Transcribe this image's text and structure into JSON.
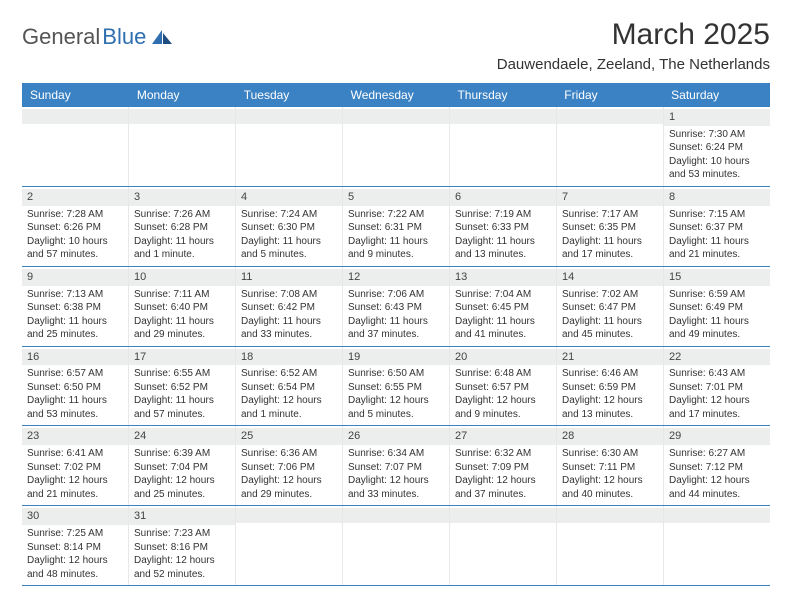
{
  "brand": {
    "part1": "General",
    "part2": "Blue"
  },
  "title": "March 2025",
  "location": "Dauwendaele, Zeeland, The Netherlands",
  "weekdays": [
    "Sunday",
    "Monday",
    "Tuesday",
    "Wednesday",
    "Thursday",
    "Friday",
    "Saturday"
  ],
  "colors": {
    "header_bg": "#3b82c4",
    "daynum_bg": "#eceded",
    "rule": "#3b82c4"
  },
  "weeks": [
    [
      {
        "n": "",
        "sr": "",
        "ss": "",
        "dl": ""
      },
      {
        "n": "",
        "sr": "",
        "ss": "",
        "dl": ""
      },
      {
        "n": "",
        "sr": "",
        "ss": "",
        "dl": ""
      },
      {
        "n": "",
        "sr": "",
        "ss": "",
        "dl": ""
      },
      {
        "n": "",
        "sr": "",
        "ss": "",
        "dl": ""
      },
      {
        "n": "",
        "sr": "",
        "ss": "",
        "dl": ""
      },
      {
        "n": "1",
        "sr": "Sunrise: 7:30 AM",
        "ss": "Sunset: 6:24 PM",
        "dl": "Daylight: 10 hours and 53 minutes."
      }
    ],
    [
      {
        "n": "2",
        "sr": "Sunrise: 7:28 AM",
        "ss": "Sunset: 6:26 PM",
        "dl": "Daylight: 10 hours and 57 minutes."
      },
      {
        "n": "3",
        "sr": "Sunrise: 7:26 AM",
        "ss": "Sunset: 6:28 PM",
        "dl": "Daylight: 11 hours and 1 minute."
      },
      {
        "n": "4",
        "sr": "Sunrise: 7:24 AM",
        "ss": "Sunset: 6:30 PM",
        "dl": "Daylight: 11 hours and 5 minutes."
      },
      {
        "n": "5",
        "sr": "Sunrise: 7:22 AM",
        "ss": "Sunset: 6:31 PM",
        "dl": "Daylight: 11 hours and 9 minutes."
      },
      {
        "n": "6",
        "sr": "Sunrise: 7:19 AM",
        "ss": "Sunset: 6:33 PM",
        "dl": "Daylight: 11 hours and 13 minutes."
      },
      {
        "n": "7",
        "sr": "Sunrise: 7:17 AM",
        "ss": "Sunset: 6:35 PM",
        "dl": "Daylight: 11 hours and 17 minutes."
      },
      {
        "n": "8",
        "sr": "Sunrise: 7:15 AM",
        "ss": "Sunset: 6:37 PM",
        "dl": "Daylight: 11 hours and 21 minutes."
      }
    ],
    [
      {
        "n": "9",
        "sr": "Sunrise: 7:13 AM",
        "ss": "Sunset: 6:38 PM",
        "dl": "Daylight: 11 hours and 25 minutes."
      },
      {
        "n": "10",
        "sr": "Sunrise: 7:11 AM",
        "ss": "Sunset: 6:40 PM",
        "dl": "Daylight: 11 hours and 29 minutes."
      },
      {
        "n": "11",
        "sr": "Sunrise: 7:08 AM",
        "ss": "Sunset: 6:42 PM",
        "dl": "Daylight: 11 hours and 33 minutes."
      },
      {
        "n": "12",
        "sr": "Sunrise: 7:06 AM",
        "ss": "Sunset: 6:43 PM",
        "dl": "Daylight: 11 hours and 37 minutes."
      },
      {
        "n": "13",
        "sr": "Sunrise: 7:04 AM",
        "ss": "Sunset: 6:45 PM",
        "dl": "Daylight: 11 hours and 41 minutes."
      },
      {
        "n": "14",
        "sr": "Sunrise: 7:02 AM",
        "ss": "Sunset: 6:47 PM",
        "dl": "Daylight: 11 hours and 45 minutes."
      },
      {
        "n": "15",
        "sr": "Sunrise: 6:59 AM",
        "ss": "Sunset: 6:49 PM",
        "dl": "Daylight: 11 hours and 49 minutes."
      }
    ],
    [
      {
        "n": "16",
        "sr": "Sunrise: 6:57 AM",
        "ss": "Sunset: 6:50 PM",
        "dl": "Daylight: 11 hours and 53 minutes."
      },
      {
        "n": "17",
        "sr": "Sunrise: 6:55 AM",
        "ss": "Sunset: 6:52 PM",
        "dl": "Daylight: 11 hours and 57 minutes."
      },
      {
        "n": "18",
        "sr": "Sunrise: 6:52 AM",
        "ss": "Sunset: 6:54 PM",
        "dl": "Daylight: 12 hours and 1 minute."
      },
      {
        "n": "19",
        "sr": "Sunrise: 6:50 AM",
        "ss": "Sunset: 6:55 PM",
        "dl": "Daylight: 12 hours and 5 minutes."
      },
      {
        "n": "20",
        "sr": "Sunrise: 6:48 AM",
        "ss": "Sunset: 6:57 PM",
        "dl": "Daylight: 12 hours and 9 minutes."
      },
      {
        "n": "21",
        "sr": "Sunrise: 6:46 AM",
        "ss": "Sunset: 6:59 PM",
        "dl": "Daylight: 12 hours and 13 minutes."
      },
      {
        "n": "22",
        "sr": "Sunrise: 6:43 AM",
        "ss": "Sunset: 7:01 PM",
        "dl": "Daylight: 12 hours and 17 minutes."
      }
    ],
    [
      {
        "n": "23",
        "sr": "Sunrise: 6:41 AM",
        "ss": "Sunset: 7:02 PM",
        "dl": "Daylight: 12 hours and 21 minutes."
      },
      {
        "n": "24",
        "sr": "Sunrise: 6:39 AM",
        "ss": "Sunset: 7:04 PM",
        "dl": "Daylight: 12 hours and 25 minutes."
      },
      {
        "n": "25",
        "sr": "Sunrise: 6:36 AM",
        "ss": "Sunset: 7:06 PM",
        "dl": "Daylight: 12 hours and 29 minutes."
      },
      {
        "n": "26",
        "sr": "Sunrise: 6:34 AM",
        "ss": "Sunset: 7:07 PM",
        "dl": "Daylight: 12 hours and 33 minutes."
      },
      {
        "n": "27",
        "sr": "Sunrise: 6:32 AM",
        "ss": "Sunset: 7:09 PM",
        "dl": "Daylight: 12 hours and 37 minutes."
      },
      {
        "n": "28",
        "sr": "Sunrise: 6:30 AM",
        "ss": "Sunset: 7:11 PM",
        "dl": "Daylight: 12 hours and 40 minutes."
      },
      {
        "n": "29",
        "sr": "Sunrise: 6:27 AM",
        "ss": "Sunset: 7:12 PM",
        "dl": "Daylight: 12 hours and 44 minutes."
      }
    ],
    [
      {
        "n": "30",
        "sr": "Sunrise: 7:25 AM",
        "ss": "Sunset: 8:14 PM",
        "dl": "Daylight: 12 hours and 48 minutes."
      },
      {
        "n": "31",
        "sr": "Sunrise: 7:23 AM",
        "ss": "Sunset: 8:16 PM",
        "dl": "Daylight: 12 hours and 52 minutes."
      },
      {
        "n": "",
        "sr": "",
        "ss": "",
        "dl": ""
      },
      {
        "n": "",
        "sr": "",
        "ss": "",
        "dl": ""
      },
      {
        "n": "",
        "sr": "",
        "ss": "",
        "dl": ""
      },
      {
        "n": "",
        "sr": "",
        "ss": "",
        "dl": ""
      },
      {
        "n": "",
        "sr": "",
        "ss": "",
        "dl": ""
      }
    ]
  ]
}
